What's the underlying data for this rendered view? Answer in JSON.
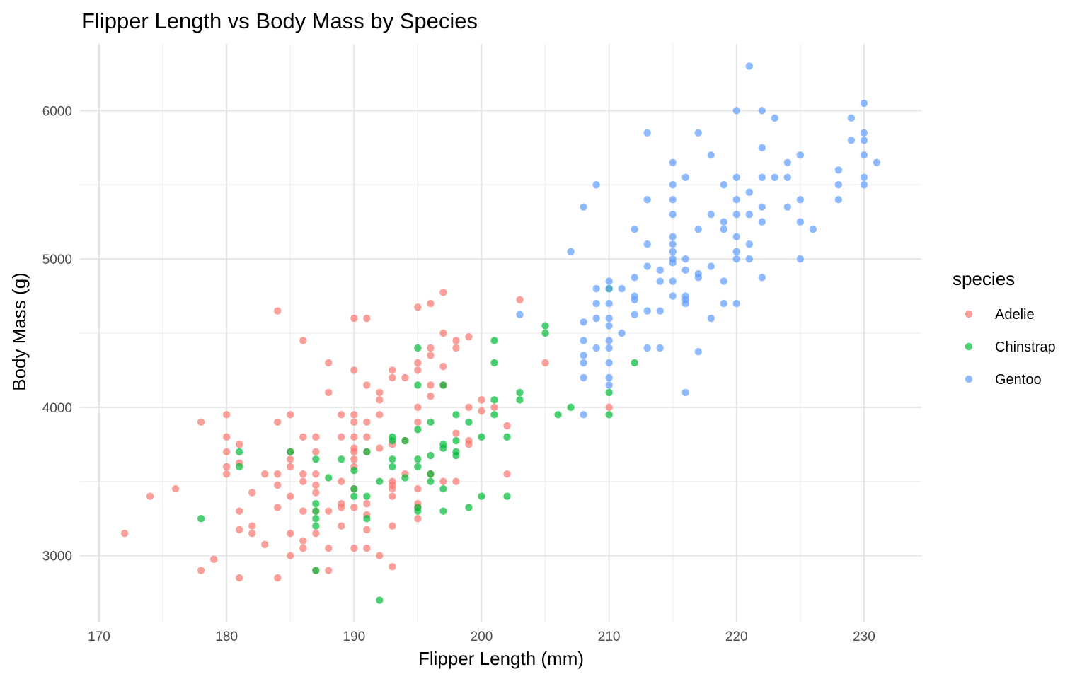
{
  "chart_data": {
    "type": "scatter",
    "title": "Flipper Length vs Body Mass by Species",
    "xlabel": "Flipper Length (mm)",
    "ylabel": "Body Mass (g)",
    "xlim": [
      168.5,
      234.5
    ],
    "ylim": [
      2550,
      6450
    ],
    "x_ticks": [
      170,
      180,
      190,
      200,
      210,
      220,
      230
    ],
    "y_ticks": [
      3000,
      4000,
      5000,
      6000
    ],
    "grid": true,
    "legend": {
      "title": "species",
      "position": "right"
    },
    "series": [
      {
        "name": "Adelie",
        "color": "#F8766D",
        "points": [
          [
            172,
            3150
          ],
          [
            174,
            3400
          ],
          [
            176,
            3450
          ],
          [
            178,
            2900
          ],
          [
            178,
            3900
          ],
          [
            179,
            2975
          ],
          [
            180,
            3950
          ],
          [
            180,
            3800
          ],
          [
            180,
            3700
          ],
          [
            180,
            3600
          ],
          [
            180,
            3550
          ],
          [
            181,
            3750
          ],
          [
            181,
            3625
          ],
          [
            181,
            3300
          ],
          [
            181,
            3175
          ],
          [
            181,
            2850
          ],
          [
            182,
            3425
          ],
          [
            182,
            3200
          ],
          [
            182,
            3150
          ],
          [
            183,
            3550
          ],
          [
            183,
            3075
          ],
          [
            184,
            4650
          ],
          [
            184,
            3900
          ],
          [
            184,
            3550
          ],
          [
            184,
            3475
          ],
          [
            184,
            3325
          ],
          [
            184,
            2850
          ],
          [
            185,
            3950
          ],
          [
            185,
            3700
          ],
          [
            185,
            3650
          ],
          [
            185,
            3600
          ],
          [
            185,
            3400
          ],
          [
            185,
            3150
          ],
          [
            185,
            3000
          ],
          [
            186,
            4450
          ],
          [
            186,
            3800
          ],
          [
            186,
            3550
          ],
          [
            186,
            3500
          ],
          [
            186,
            3300
          ],
          [
            186,
            3100
          ],
          [
            186,
            3050
          ],
          [
            187,
            3800
          ],
          [
            187,
            3700
          ],
          [
            187,
            3550
          ],
          [
            187,
            3475
          ],
          [
            187,
            3425
          ],
          [
            187,
            3300
          ],
          [
            187,
            3150
          ],
          [
            187,
            2900
          ],
          [
            188,
            4300
          ],
          [
            188,
            4100
          ],
          [
            188,
            3300
          ],
          [
            188,
            3050
          ],
          [
            188,
            2900
          ],
          [
            189,
            3950
          ],
          [
            189,
            3800
          ],
          [
            189,
            3500
          ],
          [
            189,
            3350
          ],
          [
            189,
            3325
          ],
          [
            189,
            3200
          ],
          [
            190,
            4600
          ],
          [
            190,
            4250
          ],
          [
            190,
            3950
          ],
          [
            190,
            3900
          ],
          [
            190,
            3800
          ],
          [
            190,
            3725
          ],
          [
            190,
            3700
          ],
          [
            190,
            3650
          ],
          [
            190,
            3600
          ],
          [
            190,
            3450
          ],
          [
            190,
            3325
          ],
          [
            190,
            3050
          ],
          [
            191,
            4600
          ],
          [
            191,
            4150
          ],
          [
            191,
            3900
          ],
          [
            191,
            3800
          ],
          [
            191,
            3700
          ],
          [
            191,
            3350
          ],
          [
            191,
            3275
          ],
          [
            191,
            3175
          ],
          [
            191,
            3050
          ],
          [
            192,
            4100
          ],
          [
            192,
            4050
          ],
          [
            192,
            3950
          ],
          [
            192,
            3725
          ],
          [
            192,
            3000
          ],
          [
            193,
            4250
          ],
          [
            193,
            4200
          ],
          [
            193,
            3750
          ],
          [
            193,
            3500
          ],
          [
            193,
            3475
          ],
          [
            193,
            3450
          ],
          [
            193,
            3400
          ],
          [
            193,
            3200
          ],
          [
            193,
            2925
          ],
          [
            194,
            4200
          ],
          [
            194,
            3775
          ],
          [
            194,
            3550
          ],
          [
            195,
            4675
          ],
          [
            195,
            4300
          ],
          [
            195,
            4250
          ],
          [
            195,
            4000
          ],
          [
            195,
            3900
          ],
          [
            195,
            3450
          ],
          [
            195,
            3350
          ],
          [
            195,
            3325
          ],
          [
            195,
            3250
          ],
          [
            196,
            4700
          ],
          [
            196,
            4400
          ],
          [
            196,
            4350
          ],
          [
            196,
            4150
          ],
          [
            196,
            4075
          ],
          [
            196,
            3550
          ],
          [
            197,
            4775
          ],
          [
            197,
            4500
          ],
          [
            197,
            4275
          ],
          [
            197,
            4150
          ],
          [
            197,
            3500
          ],
          [
            198,
            4450
          ],
          [
            198,
            4400
          ],
          [
            198,
            3825
          ],
          [
            198,
            3500
          ],
          [
            199,
            4475
          ],
          [
            199,
            4000
          ],
          [
            199,
            3775
          ],
          [
            199,
            3750
          ],
          [
            200,
            4050
          ],
          [
            200,
            3975
          ],
          [
            201,
            4000
          ],
          [
            202,
            3875
          ],
          [
            202,
            3550
          ],
          [
            203,
            4725
          ],
          [
            205,
            4300
          ],
          [
            210,
            4000
          ]
        ]
      },
      {
        "name": "Chinstrap",
        "color": "#00BA38",
        "points": [
          [
            178,
            3250
          ],
          [
            181,
            3700
          ],
          [
            181,
            3600
          ],
          [
            185,
            3700
          ],
          [
            187,
            3650
          ],
          [
            187,
            3350
          ],
          [
            187,
            3300
          ],
          [
            187,
            3250
          ],
          [
            187,
            3200
          ],
          [
            187,
            2900
          ],
          [
            188,
            3525
          ],
          [
            189,
            3650
          ],
          [
            190,
            3450
          ],
          [
            190,
            3400
          ],
          [
            190,
            3575
          ],
          [
            191,
            3700
          ],
          [
            191,
            3400
          ],
          [
            191,
            3250
          ],
          [
            192,
            3500
          ],
          [
            192,
            2700
          ],
          [
            193,
            3800
          ],
          [
            193,
            3775
          ],
          [
            193,
            3650
          ],
          [
            193,
            3600
          ],
          [
            194,
            3775
          ],
          [
            194,
            3525
          ],
          [
            195,
            4400
          ],
          [
            195,
            4150
          ],
          [
            195,
            3850
          ],
          [
            195,
            3650
          ],
          [
            195,
            3600
          ],
          [
            195,
            3325
          ],
          [
            195,
            3300
          ],
          [
            196,
            3900
          ],
          [
            196,
            3675
          ],
          [
            196,
            3550
          ],
          [
            196,
            3500
          ],
          [
            197,
            4150
          ],
          [
            197,
            3750
          ],
          [
            197,
            3725
          ],
          [
            197,
            3450
          ],
          [
            197,
            3300
          ],
          [
            198,
            3950
          ],
          [
            198,
            3775
          ],
          [
            198,
            3700
          ],
          [
            198,
            3675
          ],
          [
            199,
            3900
          ],
          [
            199,
            3325
          ],
          [
            200,
            3800
          ],
          [
            200,
            3400
          ],
          [
            201,
            4450
          ],
          [
            201,
            4300
          ],
          [
            201,
            4050
          ],
          [
            201,
            3950
          ],
          [
            202,
            3800
          ],
          [
            202,
            3400
          ],
          [
            203,
            4100
          ],
          [
            203,
            4050
          ],
          [
            205,
            4550
          ],
          [
            205,
            4500
          ],
          [
            206,
            3950
          ],
          [
            207,
            4000
          ],
          [
            210,
            4800
          ],
          [
            210,
            4100
          ],
          [
            210,
            3950
          ],
          [
            212,
            4300
          ]
        ]
      },
      {
        "name": "Gentoo",
        "color": "#619CFF",
        "points": [
          [
            203,
            4625
          ],
          [
            207,
            5050
          ],
          [
            208,
            5350
          ],
          [
            208,
            4575
          ],
          [
            208,
            4450
          ],
          [
            208,
            4350
          ],
          [
            208,
            4300
          ],
          [
            208,
            4200
          ],
          [
            208,
            3950
          ],
          [
            209,
            5500
          ],
          [
            209,
            4800
          ],
          [
            209,
            4700
          ],
          [
            209,
            4600
          ],
          [
            209,
            4400
          ],
          [
            210,
            4850
          ],
          [
            210,
            4800
          ],
          [
            210,
            4700
          ],
          [
            210,
            4600
          ],
          [
            210,
            4550
          ],
          [
            210,
            4450
          ],
          [
            210,
            4400
          ],
          [
            210,
            4300
          ],
          [
            210,
            4200
          ],
          [
            210,
            4150
          ],
          [
            211,
            4800
          ],
          [
            211,
            4500
          ],
          [
            212,
            5200
          ],
          [
            212,
            4875
          ],
          [
            212,
            4750
          ],
          [
            212,
            4725
          ],
          [
            212,
            4625
          ],
          [
            213,
            5850
          ],
          [
            213,
            5400
          ],
          [
            213,
            5100
          ],
          [
            213,
            4950
          ],
          [
            213,
            4650
          ],
          [
            213,
            4400
          ],
          [
            214,
            4925
          ],
          [
            214,
            4850
          ],
          [
            214,
            4650
          ],
          [
            214,
            4400
          ],
          [
            215,
            5650
          ],
          [
            215,
            5500
          ],
          [
            215,
            5400
          ],
          [
            215,
            5300
          ],
          [
            215,
            5150
          ],
          [
            215,
            5100
          ],
          [
            215,
            5050
          ],
          [
            215,
            5000
          ],
          [
            215,
            4975
          ],
          [
            215,
            4850
          ],
          [
            215,
            4750
          ],
          [
            216,
            5550
          ],
          [
            216,
            5000
          ],
          [
            216,
            4925
          ],
          [
            216,
            4750
          ],
          [
            216,
            4725
          ],
          [
            216,
            4700
          ],
          [
            216,
            4100
          ],
          [
            217,
            5850
          ],
          [
            217,
            5200
          ],
          [
            217,
            4900
          ],
          [
            217,
            4875
          ],
          [
            217,
            4375
          ],
          [
            218,
            5700
          ],
          [
            218,
            5300
          ],
          [
            218,
            4950
          ],
          [
            218,
            4600
          ],
          [
            219,
            5500
          ],
          [
            219,
            5250
          ],
          [
            219,
            5200
          ],
          [
            219,
            4850
          ],
          [
            219,
            4700
          ],
          [
            220,
            6000
          ],
          [
            220,
            5550
          ],
          [
            220,
            5400
          ],
          [
            220,
            5300
          ],
          [
            220,
            5150
          ],
          [
            220,
            5050
          ],
          [
            220,
            5000
          ],
          [
            220,
            4700
          ],
          [
            221,
            6300
          ],
          [
            221,
            5450
          ],
          [
            221,
            5300
          ],
          [
            221,
            5100
          ],
          [
            221,
            5000
          ],
          [
            222,
            6000
          ],
          [
            222,
            5750
          ],
          [
            222,
            5550
          ],
          [
            222,
            5350
          ],
          [
            222,
            5250
          ],
          [
            222,
            4875
          ],
          [
            223,
            5950
          ],
          [
            223,
            5550
          ],
          [
            224,
            5650
          ],
          [
            224,
            5550
          ],
          [
            224,
            5350
          ],
          [
            225,
            5700
          ],
          [
            225,
            5400
          ],
          [
            225,
            5250
          ],
          [
            225,
            5000
          ],
          [
            226,
            5200
          ],
          [
            228,
            5600
          ],
          [
            228,
            5500
          ],
          [
            228,
            5400
          ],
          [
            229,
            5950
          ],
          [
            229,
            5800
          ],
          [
            230,
            6050
          ],
          [
            230,
            5850
          ],
          [
            230,
            5800
          ],
          [
            230,
            5700
          ],
          [
            230,
            5550
          ],
          [
            230,
            5500
          ],
          [
            231,
            5650
          ]
        ]
      }
    ]
  }
}
